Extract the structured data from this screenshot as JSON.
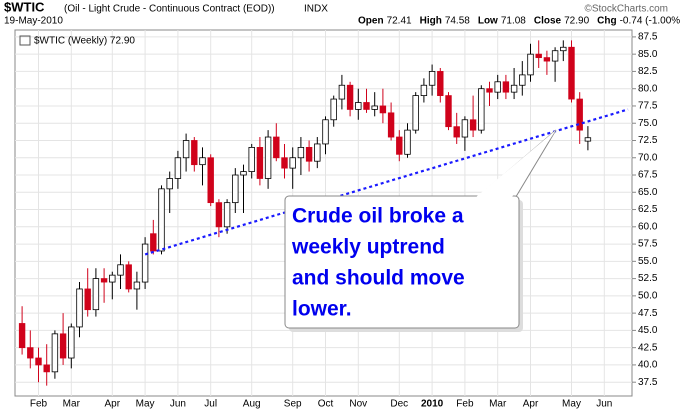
{
  "chart_data": {
    "type": "candlestick",
    "title": "$WTIC",
    "subtitle": "(Oil - Light Crude - Continuous Contract (EOD))",
    "exchange": "INDX",
    "date": "19-May-2010",
    "quote": [
      {
        "label": "Open",
        "value": "72.41"
      },
      {
        "label": "High",
        "value": "74.58"
      },
      {
        "label": "Low",
        "value": "71.08"
      },
      {
        "label": "Close",
        "value": "72.90"
      },
      {
        "label": "Chg",
        "value": "-0.74 (-1.00%)"
      }
    ],
    "source": "©StockCharts.com",
    "legend_label": "$WTIC (Weekly) 72.90",
    "up_color": "#ffffff",
    "down_color": "#d0021b",
    "grid": true,
    "categories": [
      null,
      null,
      "Feb",
      null,
      null,
      null,
      "Mar",
      null,
      null,
      null,
      null,
      "Apr",
      null,
      null,
      null,
      "May",
      null,
      null,
      null,
      "Jun",
      null,
      null,
      null,
      "Jul",
      null,
      null,
      null,
      null,
      "Aug",
      null,
      null,
      null,
      null,
      "Sep",
      null,
      null,
      null,
      "Oct",
      null,
      null,
      null,
      "Nov",
      null,
      null,
      null,
      null,
      "Dec",
      null,
      null,
      null,
      "2010",
      null,
      null,
      null,
      "Feb",
      null,
      null,
      null,
      "Mar",
      null,
      null,
      null,
      "Apr",
      null,
      null,
      null,
      null,
      "May",
      null,
      null,
      null,
      "Jun",
      null,
      null,
      null
    ],
    "open": [
      46,
      42.5,
      41,
      40,
      39,
      44.5,
      41,
      45.5,
      51,
      48,
      52.5,
      52,
      53,
      54.5,
      51,
      52,
      59,
      56.5,
      65.5,
      67,
      70,
      72.5,
      69,
      70,
      63.5,
      60,
      63.5,
      67.5,
      68,
      71.5,
      67,
      73,
      70,
      68.5,
      70,
      71.5,
      69.5,
      72,
      75.5,
      78.5,
      80.5,
      77,
      78,
      77,
      77.5,
      76.5,
      73,
      70.5,
      74,
      79,
      80.5,
      82.5,
      79,
      74.5,
      73,
      75.5,
      74,
      80,
      79.5,
      81,
      79.5,
      80.5,
      82,
      85,
      84.5,
      84,
      85.5,
      86,
      78.5,
      72.41,
      null,
      null,
      null,
      null,
      null
    ],
    "high": [
      48.5,
      45,
      42.5,
      43,
      45,
      47.5,
      46,
      52,
      54,
      54,
      54,
      53.5,
      56,
      55,
      53.5,
      58.5,
      61,
      66,
      68,
      71,
      73.5,
      73,
      71.5,
      70.5,
      64,
      64,
      68.5,
      69,
      72,
      73,
      74,
      75,
      72,
      71.5,
      73,
      72.5,
      73,
      76,
      79,
      82,
      81,
      80,
      80,
      79.5,
      80,
      78,
      74,
      75,
      79.5,
      81.5,
      83.5,
      83,
      79.5,
      76.5,
      76,
      79,
      80.5,
      81,
      82,
      82,
      83,
      84,
      86.5,
      87,
      85.5,
      86,
      87,
      87,
      79.5,
      74.58,
      null,
      null,
      null,
      null,
      null
    ],
    "low": [
      41.5,
      39.5,
      37.5,
      37,
      38,
      40,
      39.5,
      44,
      47,
      47,
      49,
      49.5,
      51,
      50.5,
      48,
      51,
      56,
      56,
      62,
      65.5,
      68,
      68,
      66,
      63,
      58.5,
      59,
      62,
      62,
      67,
      66,
      65.5,
      69.5,
      67,
      65.5,
      67.5,
      68,
      68.5,
      70.5,
      74.5,
      77,
      76,
      75.5,
      76.5,
      76,
      75,
      72.5,
      69.5,
      70,
      73.5,
      78,
      79,
      78,
      74,
      72,
      71,
      73,
      73.5,
      77.5,
      78.5,
      78.5,
      78.5,
      79,
      81,
      83,
      82,
      81,
      84,
      78,
      72,
      71.08,
      null,
      null,
      null,
      null,
      null
    ],
    "close": [
      42.5,
      41,
      40,
      39,
      44.5,
      41,
      45.5,
      51,
      48,
      52.5,
      52,
      53,
      54.5,
      51,
      52,
      57.5,
      56.5,
      65.5,
      67,
      70,
      72.5,
      69,
      70,
      63.5,
      60,
      63.5,
      67.5,
      68,
      71.5,
      67,
      73,
      70,
      68.5,
      70,
      71.5,
      69.5,
      72,
      75.5,
      78.5,
      80.5,
      77,
      78,
      77,
      77.5,
      76.5,
      73,
      70.5,
      74,
      79,
      80.5,
      82.5,
      79,
      74.5,
      73,
      75.5,
      74,
      80,
      79.5,
      81,
      79.5,
      80.5,
      82,
      85,
      84.5,
      84,
      85.5,
      86,
      78.5,
      74,
      72.9,
      null,
      null,
      null,
      null,
      null
    ],
    "trendline": {
      "values": [
        56,
        77
      ],
      "color": "#1a1aff"
    },
    "annotation": {
      "lines": [
        "Crude oil broke a",
        "weekly uptrend",
        "and should move",
        "lower."
      ],
      "color": "#0000ee"
    },
    "ylim": [
      35.5,
      88.5
    ],
    "yticks": [
      37.5,
      {
        "value": 40,
        "label": "40.0"
      },
      42.5,
      {
        "value": 45,
        "label": "45.0"
      },
      47.5,
      {
        "value": 50,
        "label": "50.0"
      },
      52.5,
      {
        "value": 55,
        "label": "55.0"
      },
      57.5,
      {
        "value": 60,
        "label": "60.0"
      },
      62.5,
      {
        "value": 65,
        "label": "65.0"
      },
      67.5,
      {
        "value": 70,
        "label": "70.0"
      },
      72.5,
      {
        "value": 75,
        "label": "75.0"
      },
      77.5,
      {
        "value": 80,
        "label": "80.0"
      },
      82.5,
      {
        "value": 85,
        "label": "85.0"
      },
      87.5
    ]
  }
}
